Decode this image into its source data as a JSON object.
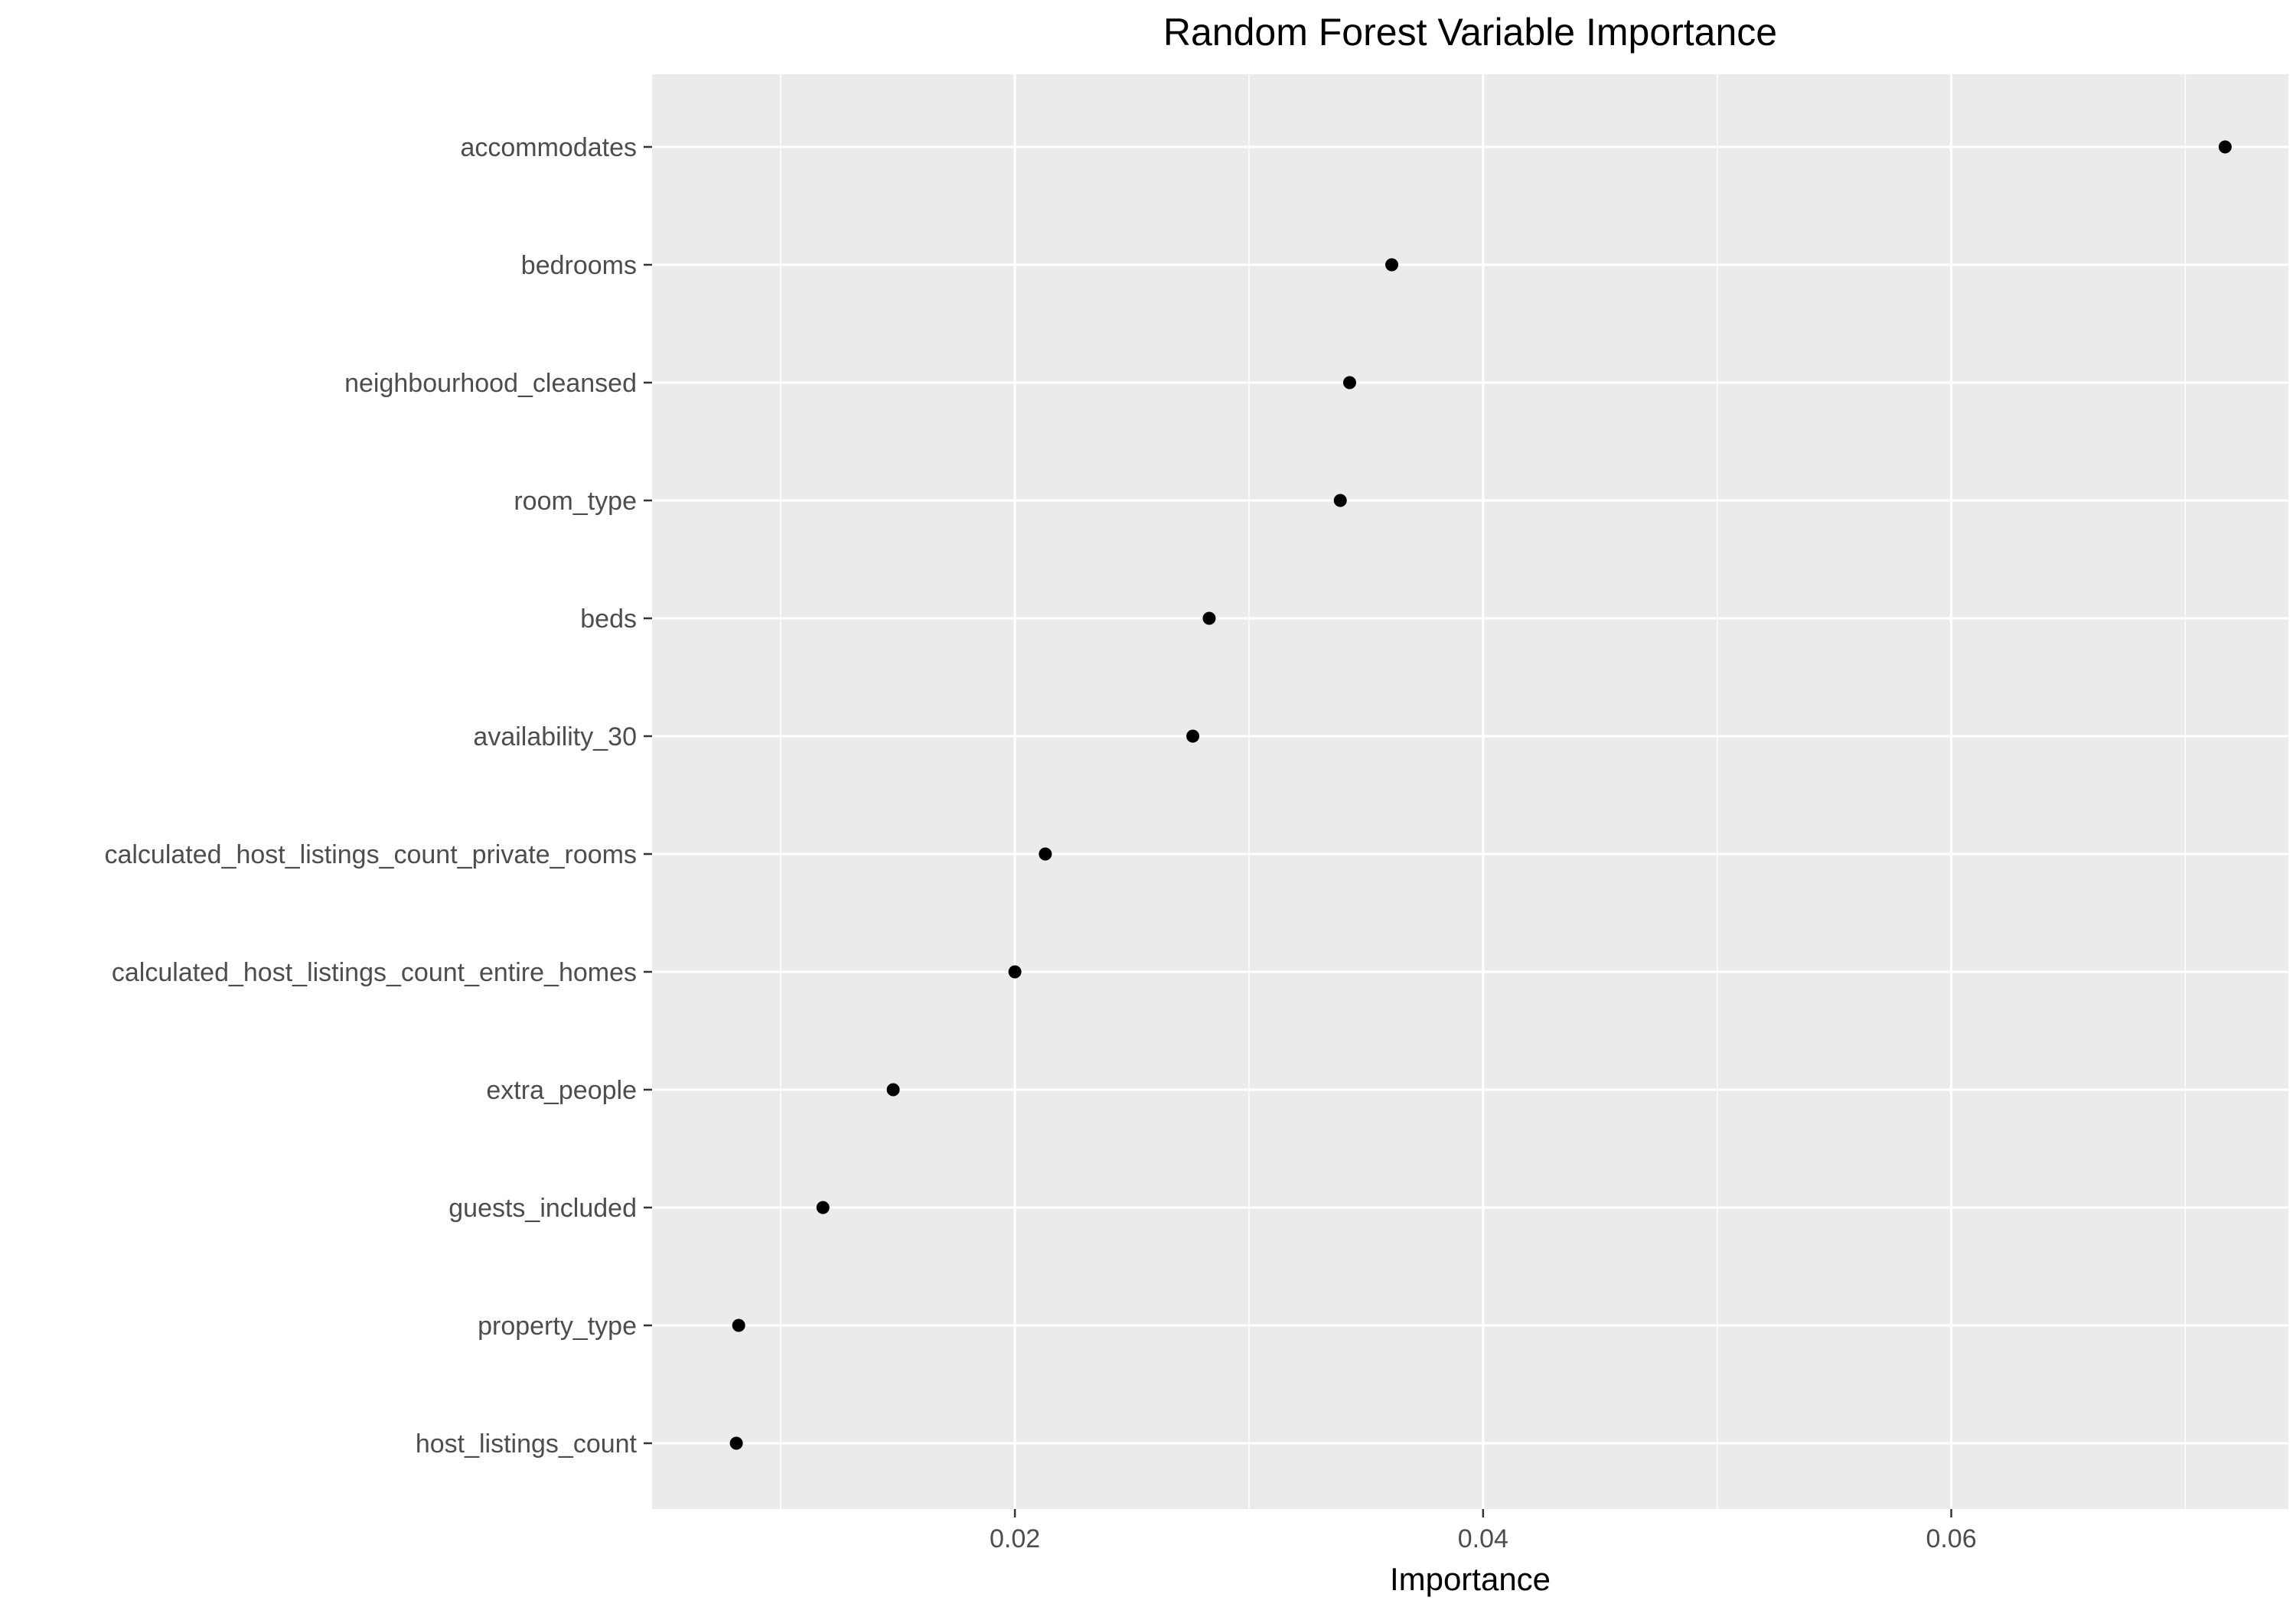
{
  "chart_data": {
    "type": "scatter",
    "title": "Random Forest Variable Importance",
    "xlabel": "Importance",
    "ylabel": "",
    "categories": [
      "accommodates",
      "bedrooms",
      "neighbourhood_cleansed",
      "room_type",
      "beds",
      "availability_30",
      "calculated_host_listings_count_private_rooms",
      "calculated_host_listings_count_entire_homes",
      "extra_people",
      "guests_included",
      "property_type",
      "host_listings_count"
    ],
    "values": [
      0.0717,
      0.0361,
      0.0343,
      0.0339,
      0.0283,
      0.0276,
      0.0213,
      0.02,
      0.0148,
      0.0118,
      0.0082,
      0.0081
    ],
    "xlim": [
      0.0045,
      0.0744
    ],
    "xticks": [
      {
        "value": 0.02,
        "label": "0.02"
      },
      {
        "value": 0.04,
        "label": "0.04"
      },
      {
        "value": 0.06,
        "label": "0.06"
      }
    ],
    "x_minor_gridlines": [
      0.01,
      0.03,
      0.05,
      0.07
    ],
    "grid": true,
    "legend": "none",
    "colors": {
      "panel_background": "#ebebeb",
      "gridline": "#ffffff",
      "point": "#000000",
      "tick_mark": "#333333",
      "tick_label": "#4d4d4d",
      "title": "#000000"
    }
  }
}
